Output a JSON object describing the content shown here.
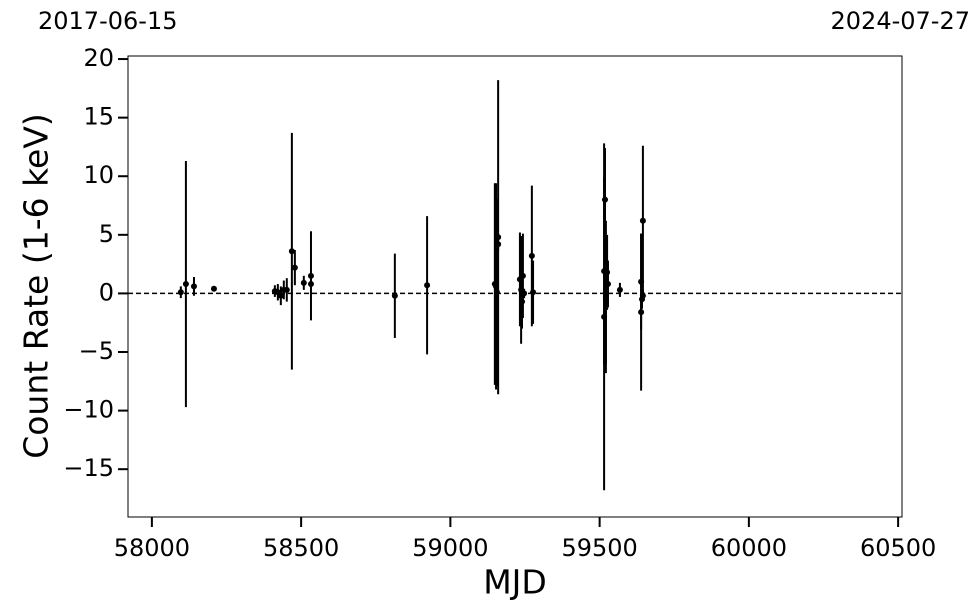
{
  "chart_data": {
    "type": "scatter",
    "top_labels": [
      "2017-06-15",
      "2024-07-27"
    ],
    "x_label": "MJD",
    "y_label": "Count Rate (1-6 keV)",
    "x": [
      58097,
      58114,
      58141,
      58208,
      58412,
      58422,
      58432,
      58442,
      58452,
      58469,
      58479,
      58509,
      58533,
      58533,
      58814,
      58922,
      59149,
      59153,
      59156,
      59160,
      59160,
      59233,
      59237,
      59240,
      59243,
      59247,
      59273,
      59277,
      59515,
      59515,
      59518,
      59521,
      59521,
      59525,
      59528,
      59568,
      59639,
      59639,
      59642,
      59645,
      59645
    ],
    "values": [
      0.1,
      0.8,
      0.6,
      0.4,
      0.2,
      0.1,
      -0.2,
      0.3,
      0.3,
      3.6,
      2.2,
      0.9,
      1.5,
      0.8,
      -0.2,
      0.7,
      0.8,
      0.6,
      0.1,
      4.8,
      4.2,
      1.2,
      0.3,
      -0.7,
      1.5,
      0.0,
      3.2,
      0.1,
      1.9,
      -2.0,
      8.0,
      -0.5,
      -0.3,
      1.8,
      0.8,
      0.3,
      1.0,
      -1.6,
      -0.5,
      6.2,
      -0.2
    ],
    "errors": [
      0.5,
      10.5,
      0.8,
      0.1,
      0.5,
      0.7,
      0.8,
      0.8,
      1.0,
      10.1,
      1.5,
      0.6,
      3.8,
      0.5,
      3.6,
      5.9,
      8.6,
      8.8,
      8.0,
      13.4,
      0.5,
      4.0,
      4.6,
      2.3,
      3.6,
      0.4,
      6.0,
      2.7,
      8.0,
      14.8,
      4.4,
      5.5,
      6.5,
      3.2,
      2.0,
      0.6,
      4.1,
      6.7,
      0.8,
      6.4,
      0.5
    ],
    "color": "#000000",
    "hline": 0,
    "xlim": [
      57920,
      60513
    ],
    "ylim": [
      -19.08,
      20.26
    ],
    "xticks": [
      58000,
      58500,
      59000,
      59500,
      60000,
      60500
    ],
    "yticks": [
      {
        "value": -15,
        "label": "−15"
      },
      {
        "value": -10,
        "label": "−10"
      },
      {
        "value": -5,
        "label": "−5"
      },
      0,
      5,
      10,
      15,
      20
    ]
  }
}
